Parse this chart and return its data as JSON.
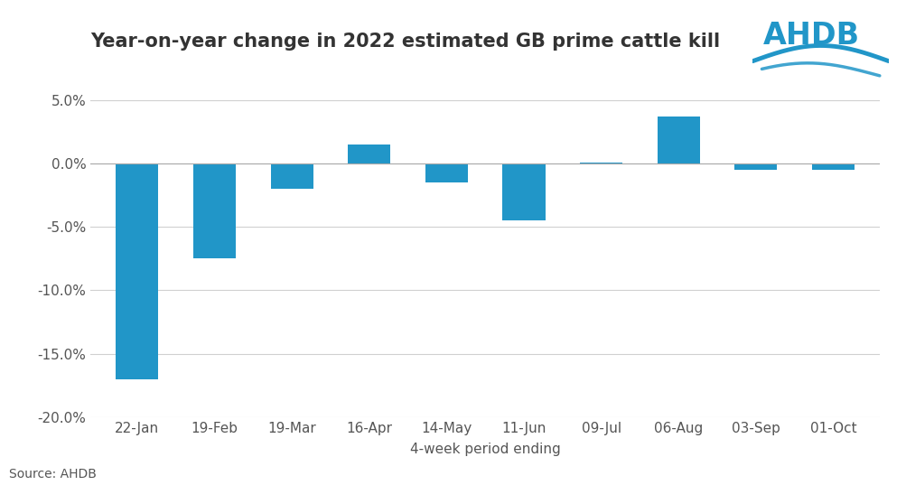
{
  "title": "Year-on-year change in 2022 estimated GB prime cattle kill",
  "categories": [
    "22-Jan",
    "19-Feb",
    "19-Mar",
    "16-Apr",
    "14-May",
    "11-Jun",
    "09-Jul",
    "06-Aug",
    "03-Sep",
    "01-Oct"
  ],
  "values": [
    -0.17,
    -0.075,
    -0.02,
    0.015,
    -0.015,
    -0.045,
    0.001,
    0.037,
    -0.005,
    -0.005
  ],
  "bar_color": "#2196c8",
  "xlabel": "4-week period ending",
  "ylim": [
    -0.2,
    0.06
  ],
  "yticks": [
    -0.2,
    -0.15,
    -0.1,
    -0.05,
    0.0,
    0.05
  ],
  "background_color": "#ffffff",
  "grid_color": "#d0d0d0",
  "source_text": "Source: AHDB",
  "title_fontsize": 15,
  "axis_fontsize": 11,
  "tick_fontsize": 11,
  "source_fontsize": 10,
  "logo_color": "#2196c8"
}
